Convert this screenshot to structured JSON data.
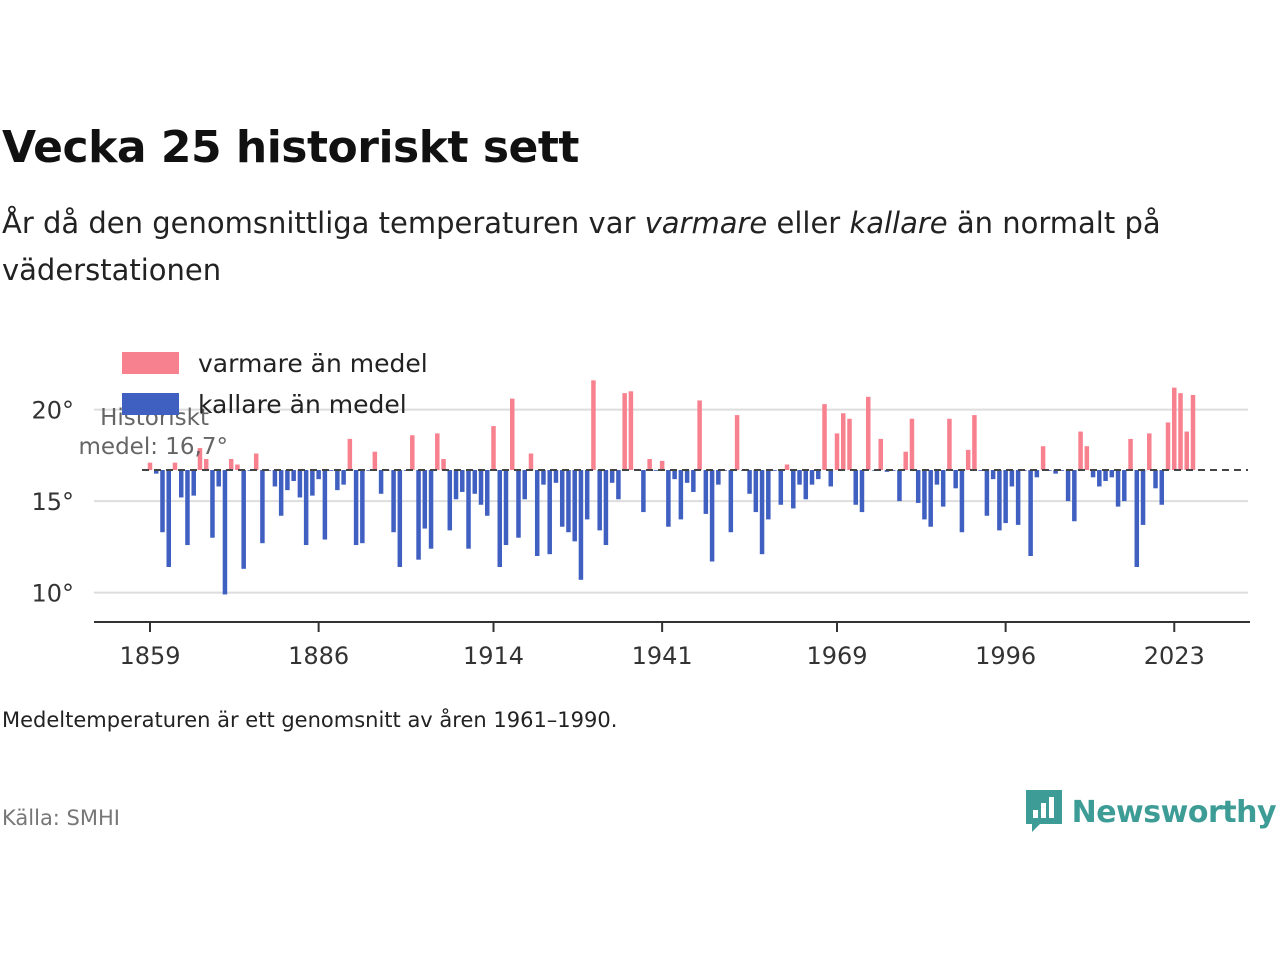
{
  "header": {
    "title": "Vecka 25 historiskt sett",
    "subtitle_part1": "År då den genomsnittliga temperaturen var ",
    "subtitle_warm": "varmare",
    "subtitle_part2": " eller ",
    "subtitle_cold": "kallare",
    "subtitle_part3": " än normalt på väderstationen"
  },
  "footer": {
    "note": "Medeltemperaturen är ett genomsnitt av åren 1961–1990.",
    "source": "Källa: SMHI",
    "brand": "Newsworthy"
  },
  "colors": {
    "warm": "#f7818e",
    "cold": "#3f5fc1",
    "brand": "#3e9c96",
    "grid": "#dddddd",
    "avg_line": "#444444"
  },
  "chart_data": {
    "type": "bar",
    "baseline": 16.7,
    "baseline_label_line1": "Historiskt",
    "baseline_label_line2": "medel: 16,7°",
    "ylim": [
      8.5,
      22
    ],
    "yticks": [
      10,
      15,
      20
    ],
    "ytick_labels": [
      "10°",
      "15°",
      "20°"
    ],
    "xticks": [
      1859,
      1886,
      1914,
      1941,
      1969,
      1996,
      2023
    ],
    "legend": [
      {
        "label": "varmare än medel",
        "key": "warm"
      },
      {
        "label": "kallare än medel",
        "key": "cold"
      }
    ],
    "start_year": 1859,
    "values": [
      17.1,
      16.5,
      13.3,
      11.4,
      17.1,
      15.2,
      12.6,
      15.3,
      17.9,
      17.3,
      13.0,
      15.8,
      9.9,
      17.3,
      17.0,
      11.3,
      16.7,
      17.6,
      12.7,
      16.7,
      15.8,
      14.2,
      15.6,
      16.1,
      15.2,
      12.6,
      15.3,
      16.2,
      12.9,
      16.7,
      15.6,
      15.9,
      18.4,
      12.6,
      12.7,
      16.7,
      17.7,
      15.4,
      16.7,
      13.3,
      11.4,
      16.7,
      18.6,
      11.8,
      13.5,
      12.4,
      18.7,
      17.3,
      13.4,
      15.1,
      15.5,
      12.4,
      15.4,
      14.8,
      14.2,
      19.1,
      11.4,
      12.6,
      20.6,
      13.0,
      15.1,
      17.6,
      12.0,
      15.9,
      12.1,
      16.0,
      13.6,
      13.3,
      12.8,
      10.7,
      14.0,
      21.6,
      13.4,
      12.6,
      16.0,
      15.1,
      20.9,
      21.0,
      16.7,
      14.4,
      17.3,
      16.7,
      17.2,
      13.6,
      16.2,
      14.0,
      16.0,
      15.5,
      20.5,
      14.3,
      11.7,
      15.9,
      16.7,
      13.3,
      19.7,
      16.7,
      15.4,
      14.4,
      12.1,
      14.0,
      16.7,
      14.8,
      17.0,
      14.6,
      15.9,
      15.1,
      15.9,
      16.2,
      20.3,
      15.8,
      18.7,
      19.8,
      19.5,
      14.8,
      14.4,
      20.7,
      16.7,
      18.4,
      16.6,
      16.7,
      15.0,
      17.7,
      19.5,
      14.9,
      14.0,
      13.6,
      15.9,
      14.7,
      19.5,
      15.7,
      13.3,
      17.8,
      19.7,
      16.7,
      14.2,
      16.2,
      13.4,
      13.8,
      15.8,
      13.7,
      16.7,
      12.0,
      16.3,
      18.0,
      16.7,
      16.5,
      16.7,
      15.0,
      13.9,
      18.8,
      18.0,
      16.3,
      15.8,
      16.1,
      16.3,
      14.7,
      15.0,
      18.4,
      11.4,
      13.7,
      18.7,
      15.7,
      14.8,
      19.3,
      21.2,
      20.9,
      18.8,
      20.8
    ]
  }
}
